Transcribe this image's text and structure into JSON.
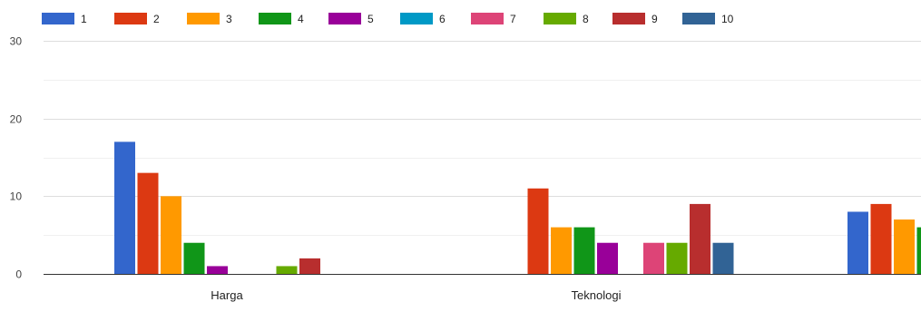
{
  "chart_data": {
    "type": "bar",
    "categories": [
      "Harga",
      "Teknologi",
      ""
    ],
    "series": [
      {
        "name": "1",
        "color": "#3366cc",
        "values": [
          17,
          0,
          8
        ]
      },
      {
        "name": "2",
        "color": "#dc3912",
        "values": [
          13,
          11,
          9
        ]
      },
      {
        "name": "3",
        "color": "#ff9900",
        "values": [
          10,
          6,
          7
        ]
      },
      {
        "name": "4",
        "color": "#109618",
        "values": [
          4,
          6,
          6
        ]
      },
      {
        "name": "5",
        "color": "#990099",
        "values": [
          1,
          4,
          null
        ]
      },
      {
        "name": "6",
        "color": "#0099c6",
        "values": [
          0,
          0,
          null
        ]
      },
      {
        "name": "7",
        "color": "#dd4477",
        "values": [
          0,
          4,
          null
        ]
      },
      {
        "name": "8",
        "color": "#66aa00",
        "values": [
          1,
          4,
          null
        ]
      },
      {
        "name": "9",
        "color": "#b82e2e",
        "values": [
          2,
          9,
          null
        ]
      },
      {
        "name": "10",
        "color": "#316395",
        "values": [
          0,
          4,
          null
        ]
      }
    ],
    "yticks": [
      0,
      10,
      20,
      30
    ],
    "ylim": [
      0,
      30
    ],
    "grid": true,
    "legend_position": "top-left",
    "title": "",
    "xlabel": "",
    "ylabel": ""
  }
}
